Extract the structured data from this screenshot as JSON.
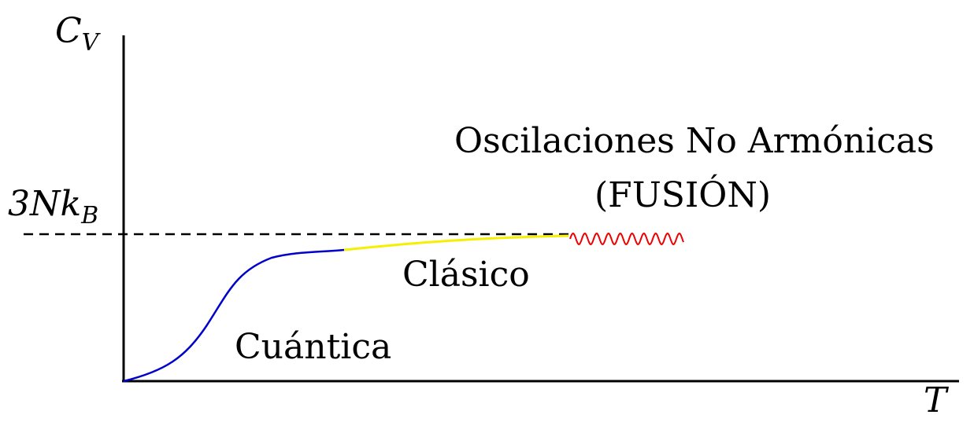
{
  "axes": {
    "y_label_main": "C",
    "y_label_sub": "V",
    "x_label": "T",
    "ref_label_prefix": "3Nk",
    "ref_label_sub": "B"
  },
  "regions": {
    "quantum": "Cuántica",
    "classical": "Clásico",
    "anharmonic_line1": "Oscilaciones No Armónicas",
    "anharmonic_line2": "(FUSIÓN)"
  },
  "colors": {
    "axis": "#000000",
    "quantum_curve": "#0000cc",
    "classical_curve": "#f5f000",
    "anharmonic_curve": "#ee0000",
    "reference_line": "#000000"
  }
}
